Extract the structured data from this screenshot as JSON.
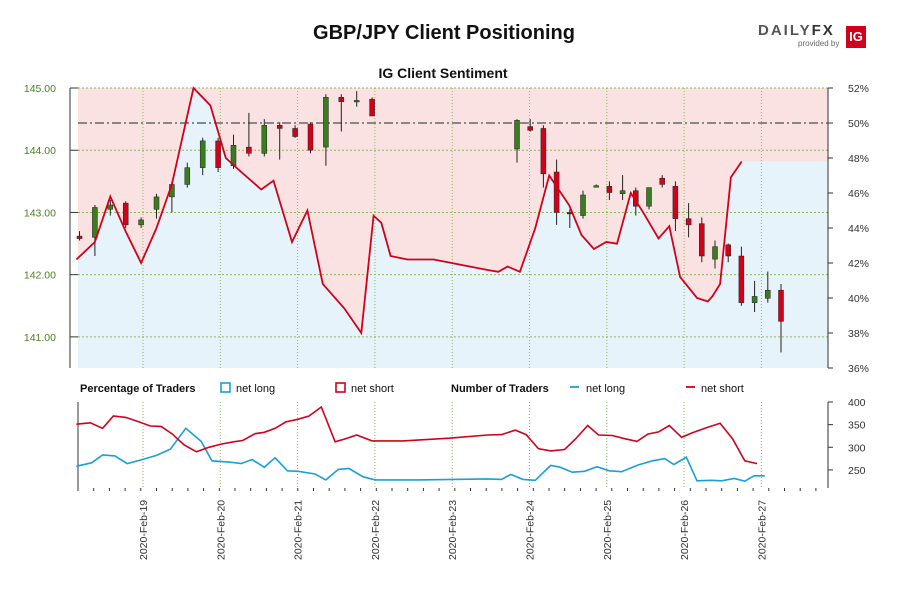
{
  "title": "GBP/JPY Client Positioning",
  "logo": {
    "brand_a": "DAILY",
    "brand_b": "FX",
    "sub": "provided by",
    "ig": "IG"
  },
  "colors": {
    "bull": "#3a7d1e",
    "bear": "#d0021b",
    "net_long": "#1a9fd9",
    "net_short": "#d0021b",
    "short_fill": "#fbe2e2",
    "long_fill": "#e6f3fb",
    "grid": "#8fb55b",
    "ref": "#666666"
  },
  "chart_data": [
    {
      "type": "candlestick",
      "subtitle": "IG Client Sentiment",
      "y_left": {
        "ticks": [
          "145.00",
          "144.00",
          "143.00",
          "142.00",
          "141.00"
        ],
        "range": [
          140.5,
          145.0
        ]
      },
      "y_right": {
        "ticks": [
          "52%",
          "50%",
          "48%",
          "46%",
          "44%",
          "42%",
          "40%",
          "38%",
          "36%"
        ],
        "range": [
          36,
          52
        ]
      },
      "reference_level": 50,
      "candles": [
        [
          0.0,
          142.62,
          142.7,
          142.55,
          142.58
        ],
        [
          1.0,
          142.6,
          143.12,
          142.3,
          143.08
        ],
        [
          2.0,
          143.05,
          143.2,
          142.95,
          143.12
        ],
        [
          3.0,
          143.15,
          143.18,
          142.75,
          142.8
        ],
        [
          4.0,
          142.8,
          142.92,
          142.75,
          142.88
        ],
        [
          5.0,
          143.05,
          143.3,
          142.9,
          143.25
        ],
        [
          6.0,
          143.25,
          143.5,
          143.0,
          143.45
        ],
        [
          7.0,
          143.45,
          143.8,
          143.4,
          143.72
        ],
        [
          8.0,
          143.72,
          144.2,
          143.6,
          144.15
        ],
        [
          9.0,
          144.15,
          144.2,
          143.65,
          143.72
        ],
        [
          10.0,
          143.75,
          144.25,
          143.7,
          144.08
        ],
        [
          11.0,
          144.05,
          144.6,
          143.9,
          143.95
        ],
        [
          12.0,
          143.95,
          144.5,
          143.9,
          144.4
        ],
        [
          13.0,
          144.4,
          144.45,
          143.85,
          144.35
        ],
        [
          14.0,
          144.35,
          144.4,
          144.2,
          144.22
        ],
        [
          15.0,
          144.42,
          144.45,
          143.95,
          144.0
        ],
        [
          16.0,
          144.05,
          144.9,
          143.75,
          144.85
        ],
        [
          17.0,
          144.85,
          144.9,
          144.3,
          144.78
        ],
        [
          18.0,
          144.78,
          144.95,
          144.7,
          144.8
        ],
        [
          19.0,
          144.82,
          144.85,
          144.55,
          144.55
        ],
        [
          20.0,
          144.02,
          144.5,
          143.8,
          144.48
        ],
        [
          21.0,
          144.38,
          144.5,
          144.3,
          144.32
        ],
        [
          22.0,
          144.35,
          144.4,
          143.4,
          143.62
        ],
        [
          23.0,
          143.65,
          143.85,
          142.8,
          143.0
        ],
        [
          24.0,
          143.0,
          143.05,
          142.75,
          142.98
        ],
        [
          25.0,
          142.95,
          143.35,
          142.9,
          143.28
        ],
        [
          26.0,
          143.42,
          143.45,
          143.4,
          143.43
        ],
        [
          27.0,
          143.42,
          143.5,
          143.2,
          143.32
        ],
        [
          28.0,
          143.3,
          143.6,
          143.2,
          143.35
        ],
        [
          29.0,
          143.35,
          143.4,
          142.95,
          143.1
        ],
        [
          30.0,
          143.1,
          143.4,
          143.05,
          143.4
        ],
        [
          31.0,
          143.55,
          143.6,
          143.4,
          143.45
        ],
        [
          32.0,
          143.42,
          143.5,
          142.7,
          142.9
        ],
        [
          33.0,
          142.9,
          143.15,
          142.6,
          142.8
        ],
        [
          34.0,
          142.82,
          142.92,
          142.2,
          142.3
        ],
        [
          35.0,
          142.25,
          142.55,
          142.1,
          142.45
        ],
        [
          36.0,
          142.48,
          142.5,
          142.2,
          142.3
        ],
        [
          37.0,
          142.3,
          142.45,
          141.5,
          141.55
        ],
        [
          38.0,
          141.55,
          141.9,
          141.4,
          141.65
        ],
        [
          39.0,
          141.62,
          142.05,
          141.55,
          141.75
        ],
        [
          40.0,
          141.75,
          141.85,
          140.75,
          141.25
        ]
      ],
      "short_pct_line": [
        [
          -0.2,
          42.2
        ],
        [
          1.0,
          43.2
        ],
        [
          2.0,
          45.8
        ],
        [
          3.0,
          43.8
        ],
        [
          4.0,
          42.0
        ],
        [
          5.0,
          44.0
        ],
        [
          6.0,
          46.5
        ],
        [
          7.4,
          52.0
        ],
        [
          8.5,
          51.0
        ],
        [
          9.5,
          48.0
        ],
        [
          10.5,
          47.2
        ],
        [
          11.8,
          46.2
        ],
        [
          12.6,
          46.7
        ],
        [
          13.8,
          43.2
        ],
        [
          14.8,
          45.0
        ],
        [
          15.8,
          40.8
        ],
        [
          17.2,
          39.4
        ],
        [
          18.3,
          38.0
        ],
        [
          19.1,
          44.7
        ],
        [
          19.6,
          44.3
        ],
        [
          20.2,
          42.4
        ],
        [
          21.3,
          42.2
        ],
        [
          23.0,
          42.2
        ],
        [
          26.5,
          41.6
        ],
        [
          27.2,
          41.5
        ],
        [
          27.8,
          41.8
        ],
        [
          28.6,
          41.5
        ],
        [
          29.6,
          44.0
        ],
        [
          30.5,
          47.0
        ],
        [
          31.8,
          45.3
        ],
        [
          32.6,
          43.6
        ],
        [
          33.4,
          42.8
        ],
        [
          34.2,
          43.2
        ],
        [
          34.9,
          43.1
        ],
        [
          35.8,
          46.0
        ],
        [
          36.6,
          44.9
        ],
        [
          37.6,
          43.4
        ],
        [
          38.3,
          44.1
        ],
        [
          39.0,
          41.2
        ],
        [
          40.1,
          40.0
        ],
        [
          40.8,
          39.8
        ],
        [
          41.1,
          40.1
        ],
        [
          41.6,
          40.8
        ],
        [
          42.3,
          46.9
        ],
        [
          43.0,
          47.8
        ]
      ],
      "x_dates": [
        "2020-Feb-19",
        "2020-Feb-20",
        "2020-Feb-21",
        "2020-Feb-22",
        "2020-Feb-23",
        "2020-Feb-24",
        "2020-Feb-25",
        "2020-Feb-26",
        "2020-Feb-27"
      ]
    },
    {
      "type": "line",
      "legend": {
        "pct_label": "Percentage of Traders",
        "num_label": "Number of Traders",
        "net_long": "net long",
        "net_short": "net short"
      },
      "y_right": {
        "ticks": [
          "400",
          "350",
          "300",
          "250"
        ],
        "range": [
          210,
          400
        ]
      },
      "net_long": [
        [
          -0.2,
          258
        ],
        [
          0.8,
          266
        ],
        [
          1.5,
          283
        ],
        [
          2.3,
          281
        ],
        [
          3.1,
          264
        ],
        [
          4.0,
          272
        ],
        [
          5.0,
          282
        ],
        [
          5.9,
          296
        ],
        [
          6.9,
          342
        ],
        [
          7.9,
          313
        ],
        [
          8.6,
          270
        ],
        [
          9.8,
          267
        ],
        [
          10.5,
          264
        ],
        [
          11.2,
          273
        ],
        [
          12.0,
          256
        ],
        [
          12.7,
          277
        ],
        [
          13.5,
          248
        ],
        [
          14.2,
          247
        ],
        [
          15.3,
          241
        ],
        [
          16.0,
          228
        ],
        [
          16.8,
          251
        ],
        [
          17.5,
          253
        ],
        [
          18.4,
          235
        ],
        [
          19.2,
          228
        ],
        [
          22.0,
          228
        ],
        [
          26.5,
          230
        ],
        [
          27.4,
          229
        ],
        [
          28.0,
          240
        ],
        [
          28.8,
          229
        ],
        [
          29.6,
          227
        ],
        [
          30.6,
          260
        ],
        [
          31.2,
          256
        ],
        [
          32.0,
          245
        ],
        [
          32.8,
          247
        ],
        [
          33.6,
          257
        ],
        [
          34.4,
          248
        ],
        [
          35.2,
          246
        ],
        [
          36.3,
          261
        ],
        [
          37.2,
          270
        ],
        [
          38.0,
          275
        ],
        [
          38.6,
          262
        ],
        [
          39.4,
          278
        ],
        [
          40.1,
          226
        ],
        [
          41.0,
          227
        ],
        [
          41.7,
          226
        ],
        [
          42.5,
          231
        ],
        [
          43.2,
          225
        ],
        [
          43.8,
          237
        ],
        [
          44.5,
          237
        ]
      ],
      "net_short": [
        [
          -0.2,
          351
        ],
        [
          0.7,
          354
        ],
        [
          1.5,
          342
        ],
        [
          2.2,
          369
        ],
        [
          3.0,
          366
        ],
        [
          3.8,
          357
        ],
        [
          4.6,
          347
        ],
        [
          5.3,
          346
        ],
        [
          6.0,
          330
        ],
        [
          6.8,
          305
        ],
        [
          7.6,
          290
        ],
        [
          8.4,
          300
        ],
        [
          9.2,
          307
        ],
        [
          10.0,
          312
        ],
        [
          10.6,
          315
        ],
        [
          11.4,
          330
        ],
        [
          12.0,
          333
        ],
        [
          12.7,
          342
        ],
        [
          13.4,
          356
        ],
        [
          14.2,
          362
        ],
        [
          14.9,
          369
        ],
        [
          15.7,
          389
        ],
        [
          16.6,
          312
        ],
        [
          17.2,
          318
        ],
        [
          18.0,
          327
        ],
        [
          19.0,
          314
        ],
        [
          21.0,
          314
        ],
        [
          24.0,
          320
        ],
        [
          26.5,
          327
        ],
        [
          27.4,
          328
        ],
        [
          28.3,
          338
        ],
        [
          29.0,
          328
        ],
        [
          29.8,
          297
        ],
        [
          30.6,
          292
        ],
        [
          31.5,
          295
        ],
        [
          32.2,
          318
        ],
        [
          33.0,
          348
        ],
        [
          33.7,
          327
        ],
        [
          34.6,
          326
        ],
        [
          35.4,
          319
        ],
        [
          36.2,
          313
        ],
        [
          36.9,
          329
        ],
        [
          37.6,
          334
        ],
        [
          38.3,
          348
        ],
        [
          39.1,
          322
        ],
        [
          39.8,
          332
        ],
        [
          40.7,
          343
        ],
        [
          41.6,
          353
        ],
        [
          42.4,
          319
        ],
        [
          43.2,
          270
        ],
        [
          44.0,
          264
        ]
      ]
    }
  ]
}
